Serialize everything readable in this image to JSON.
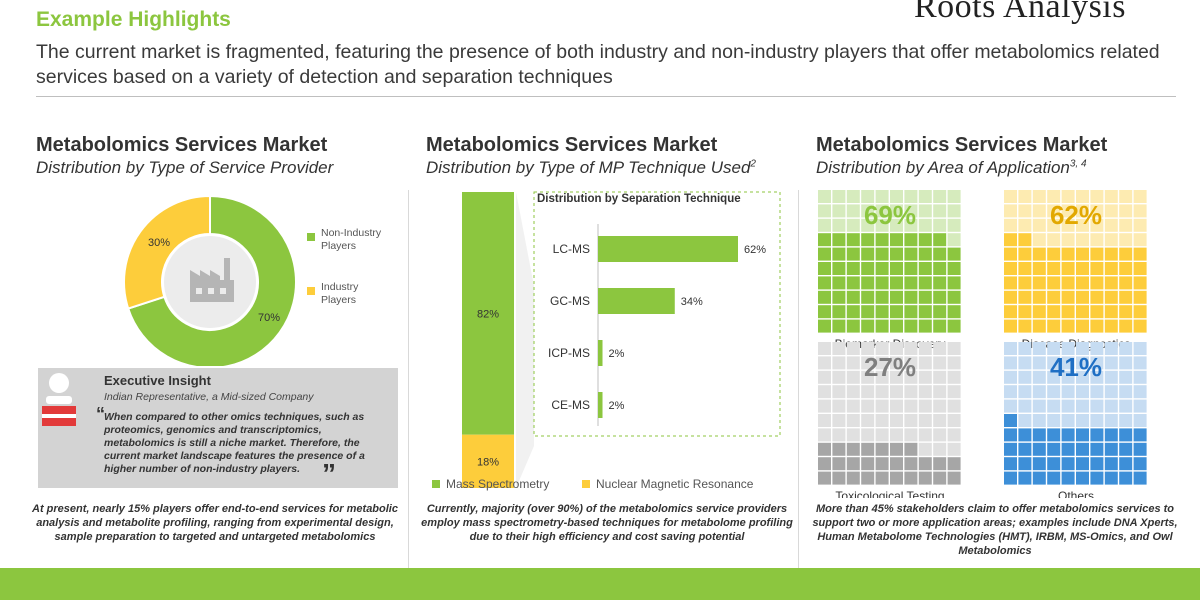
{
  "header": {
    "title": "Example Highlights",
    "subtitle": "The current market is fragmented, featuring the presence of both industry and non-industry players that offer metabolomics related services based on a variety of detection and separation techniques",
    "logo": "Roots Analysis"
  },
  "colors": {
    "green": "#8cc63f",
    "yellow": "#fdcd3b",
    "gray": "#a6a6a6",
    "blue": "#3d8fd8"
  },
  "panels": [
    {
      "title": "Metabolomics Services Market",
      "subtitle": "Distribution by Type of Service Provider",
      "sup": ""
    },
    {
      "title": "Metabolomics Services Market",
      "subtitle": "Distribution by Type of MP Technique Used",
      "sup": "2"
    },
    {
      "title": "Metabolomics Services Market",
      "subtitle": "Distribution by Area of Application",
      "sup": "3, 4"
    }
  ],
  "insight": {
    "title": "Executive Insight",
    "role": "Indian Representative, a Mid-sized Company",
    "quote": "When compared to other omics techniques, such as proteomics, genomics and transcriptomics, metabolomics is still a niche market. Therefore, the current market landscape features the presence of a higher number of non-industry players."
  },
  "footnotes": [
    "At present, nearly 15% players offer end-to-end services for metabolic analysis and metabolite profiling, ranging from experimental design, sample preparation to targeted and untargeted metabolomics",
    "Currently, majority (over 90%) of the metabolomics service providers employ mass spectrometry-based techniques for metabolome profiling due to their high efficiency and cost saving potential",
    "More than 45% stakeholders claim to offer metabolomics services to support two or more application areas; examples include DNA Xperts, Human Metabolome Technologies (HMT), IRBM, MS-Omics, and Owl Metabolomics"
  ],
  "chart_data": [
    {
      "type": "pie",
      "title": "Distribution by Type of Service Provider",
      "labels": [
        "Non-Industry Players",
        "Industry Players"
      ],
      "legend_lines": [
        [
          "Non-Industry",
          "Players"
        ],
        [
          "Industry",
          "Players"
        ]
      ],
      "values": [
        70,
        30
      ],
      "value_labels": [
        "70%",
        "30%"
      ],
      "colors": [
        "#8cc63f",
        "#fdcd3b"
      ],
      "legend": "right"
    },
    {
      "type": "bar",
      "title": "Distribution by Type of MP Technique Used",
      "series": [
        {
          "name": "Mass Spectrometry",
          "value": 82,
          "label": "82%",
          "color": "#8cc63f"
        },
        {
          "name": "Nuclear Magnetic Resonance",
          "value": 18,
          "label": "18%",
          "color": "#fdcd3b"
        }
      ],
      "stacked": true,
      "legend": "bottom"
    },
    {
      "type": "bar",
      "title": "Distribution by Separation Technique",
      "categories": [
        "LC-MS",
        "GC-MS",
        "ICP-MS",
        "CE-MS"
      ],
      "values": [
        62,
        34,
        2,
        2
      ],
      "value_labels": [
        "62%",
        "34%",
        "2%",
        "2%"
      ],
      "orientation": "horizontal",
      "color": "#8cc63f"
    },
    {
      "type": "heatmap",
      "title": "Distribution by Area of Application",
      "categories": [
        "Biomarker Discovery",
        "Disease Diagnostics",
        "Toxicological Testing",
        "Others"
      ],
      "values": [
        69,
        62,
        27,
        41
      ],
      "value_labels": [
        "69%",
        "62%",
        "27%",
        "41%"
      ],
      "colors": [
        "#8cc63f",
        "#fdcd3b",
        "#a6a6a6",
        "#3d8fd8"
      ],
      "light_colors": [
        "#d6ebbd",
        "#fdebb1",
        "#e0e0e0",
        "#c6dcf2"
      ],
      "label_colors": [
        "#8cc63f",
        "#e2a800",
        "#7f7f7f",
        "#1f6fc4"
      ]
    }
  ]
}
